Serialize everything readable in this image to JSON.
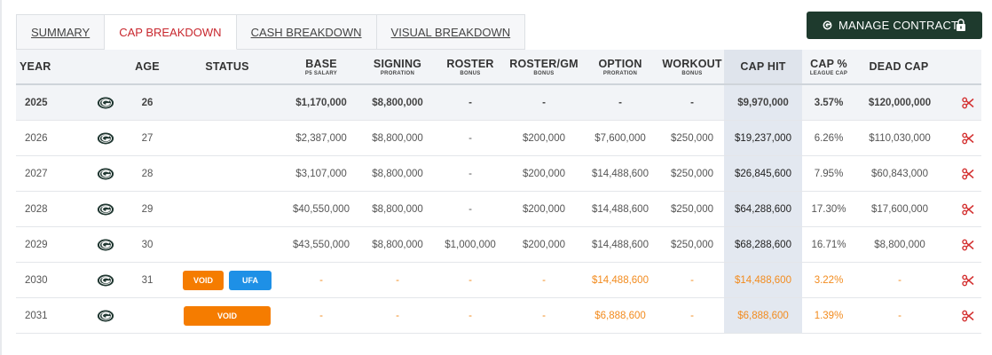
{
  "tabs": [
    {
      "label": "SUMMARY",
      "active": false
    },
    {
      "label": "CAP BREAKDOWN",
      "active": true
    },
    {
      "label": "CASH BREAKDOWN",
      "active": false
    },
    {
      "label": "VISUAL BREAKDOWN",
      "active": false
    }
  ],
  "manage_button": {
    "label": "MANAGE CONTRACT"
  },
  "colors": {
    "accent_red": "#c8272e",
    "button_dark": "#1e3a2d",
    "void_orange": "#f57c00",
    "ufa_blue": "#1e90e6",
    "team_green": "#203731",
    "team_gold": "#ffb612"
  },
  "columns": {
    "year": {
      "main": "YEAR"
    },
    "age": {
      "main": "AGE"
    },
    "status": {
      "main": "STATUS"
    },
    "base": {
      "main": "BASE",
      "sub": "P5 SALARY"
    },
    "signing": {
      "main": "SIGNING",
      "sub": "PRORATION"
    },
    "roster": {
      "main": "ROSTER",
      "sub": "BONUS"
    },
    "rostergm": {
      "main": "ROSTER/GM",
      "sub": "BONUS"
    },
    "option": {
      "main": "OPTION",
      "sub": "PRORATION"
    },
    "workout": {
      "main": "WORKOUT",
      "sub": "BONUS"
    },
    "caphit": {
      "main": "CAP HIT"
    },
    "cappct": {
      "main": "CAP %",
      "sub": "LEAGUE CAP"
    },
    "deadcap": {
      "main": "DEAD CAP"
    }
  },
  "rows": [
    {
      "year": "2025",
      "age": "26",
      "badges": [],
      "base": "$1,170,000",
      "signing": "$8,800,000",
      "roster": "-",
      "rostergm": "-",
      "option": "-",
      "workout": "-",
      "caphit": "$9,970,000",
      "cappct": "3.57%",
      "deadcap": "$120,000,000"
    },
    {
      "year": "2026",
      "age": "27",
      "badges": [],
      "base": "$2,387,000",
      "signing": "$8,800,000",
      "roster": "-",
      "rostergm": "$200,000",
      "option": "$7,600,000",
      "workout": "$250,000",
      "caphit": "$19,237,000",
      "cappct": "6.26%",
      "deadcap": "$110,030,000"
    },
    {
      "year": "2027",
      "age": "28",
      "badges": [],
      "base": "$3,107,000",
      "signing": "$8,800,000",
      "roster": "-",
      "rostergm": "$200,000",
      "option": "$14,488,600",
      "workout": "$250,000",
      "caphit": "$26,845,600",
      "cappct": "7.95%",
      "deadcap": "$60,843,000"
    },
    {
      "year": "2028",
      "age": "29",
      "badges": [],
      "base": "$40,550,000",
      "signing": "$8,800,000",
      "roster": "-",
      "rostergm": "$200,000",
      "option": "$14,488,600",
      "workout": "$250,000",
      "caphit": "$64,288,600",
      "cappct": "17.30%",
      "deadcap": "$17,600,000"
    },
    {
      "year": "2029",
      "age": "30",
      "badges": [],
      "base": "$43,550,000",
      "signing": "$8,800,000",
      "roster": "$1,000,000",
      "rostergm": "$200,000",
      "option": "$14,488,600",
      "workout": "$250,000",
      "caphit": "$68,288,600",
      "cappct": "16.71%",
      "deadcap": "$8,800,000"
    },
    {
      "year": "2030",
      "age": "31",
      "badges": [
        "VOID",
        "UFA"
      ],
      "base": "-",
      "signing": "-",
      "roster": "-",
      "rostergm": "-",
      "option": "$14,488,600",
      "workout": "-",
      "caphit": "$14,488,600",
      "cappct": "3.22%",
      "deadcap": "-"
    },
    {
      "year": "2031",
      "age": "",
      "badges": [
        "VOID"
      ],
      "base": "-",
      "signing": "-",
      "roster": "-",
      "rostergm": "-",
      "option": "$6,888,600",
      "workout": "-",
      "caphit": "$6,888,600",
      "cappct": "1.39%",
      "deadcap": "-"
    }
  ],
  "icons": {
    "team_logo": "packers-g-logo-icon",
    "cut": "scissors-icon",
    "lock": "lock-icon"
  }
}
